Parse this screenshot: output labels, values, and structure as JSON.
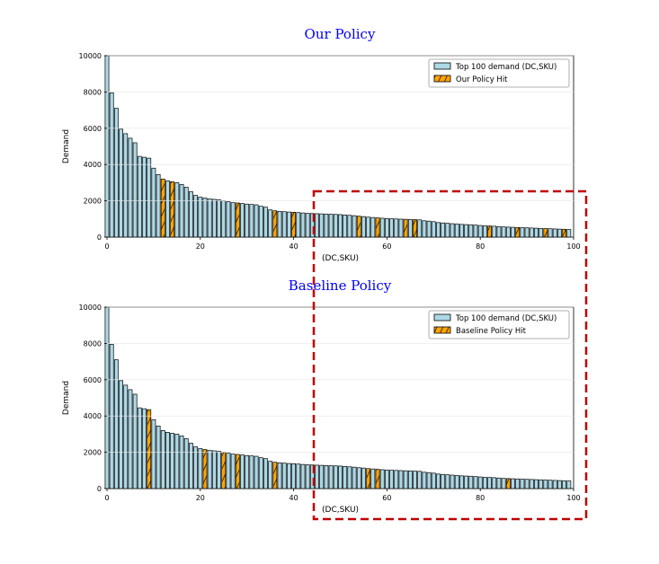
{
  "colors": {
    "demand": "#add8e6",
    "hit": "#ffa500",
    "highlight": "#c00000",
    "title": "#0000ff"
  },
  "chart_data": [
    {
      "type": "bar",
      "title": "Our Policy",
      "xlabel": "(DC,SKU)",
      "ylabel": "Demand",
      "xlim": [
        0,
        100
      ],
      "ylim": [
        0,
        10000
      ],
      "xticks": [
        "0",
        "20",
        "40",
        "60",
        "80",
        "100"
      ],
      "yticks": [
        "0",
        "2000",
        "4000",
        "6000",
        "8000",
        "10000"
      ],
      "legend": [
        "Top 100 demand (DC,SKU)",
        "Our Policy Hit"
      ],
      "legend_position": "top-right",
      "hit_indices": [
        12,
        14,
        28,
        36,
        40,
        54,
        58,
        64,
        66,
        82,
        88,
        94,
        98
      ]
    },
    {
      "type": "bar",
      "title": "Baseline Policy",
      "xlabel": "(DC,SKU)",
      "ylabel": "Demand",
      "xlim": [
        0,
        100
      ],
      "ylim": [
        0,
        10000
      ],
      "xticks": [
        "0",
        "20",
        "40",
        "60",
        "80",
        "100"
      ],
      "yticks": [
        "0",
        "2000",
        "4000",
        "6000",
        "8000",
        "10000"
      ],
      "legend": [
        "Top 100 demand (DC,SKU)",
        "Baseline Policy Hit"
      ],
      "legend_position": "top-right",
      "hit_indices": [
        9,
        21,
        25,
        28,
        36,
        56,
        58,
        86
      ]
    }
  ],
  "demand_values": [
    10000,
    7950,
    7100,
    5950,
    5700,
    5450,
    5200,
    4450,
    4400,
    4350,
    3800,
    3450,
    3200,
    3100,
    3050,
    3000,
    2900,
    2750,
    2500,
    2300,
    2200,
    2150,
    2100,
    2080,
    2050,
    2000,
    1950,
    1900,
    1880,
    1850,
    1820,
    1800,
    1780,
    1700,
    1650,
    1500,
    1450,
    1420,
    1400,
    1380,
    1370,
    1350,
    1330,
    1310,
    1300,
    1290,
    1280,
    1270,
    1260,
    1250,
    1240,
    1220,
    1200,
    1180,
    1150,
    1130,
    1100,
    1080,
    1060,
    1040,
    1020,
    1010,
    1000,
    990,
    980,
    970,
    960,
    950,
    900,
    880,
    850,
    800,
    780,
    760,
    740,
    720,
    700,
    690,
    680,
    660,
    640,
    620,
    610,
    600,
    580,
    560,
    550,
    540,
    530,
    520,
    510,
    500,
    490,
    480,
    470,
    460,
    450,
    440,
    430,
    420
  ]
}
